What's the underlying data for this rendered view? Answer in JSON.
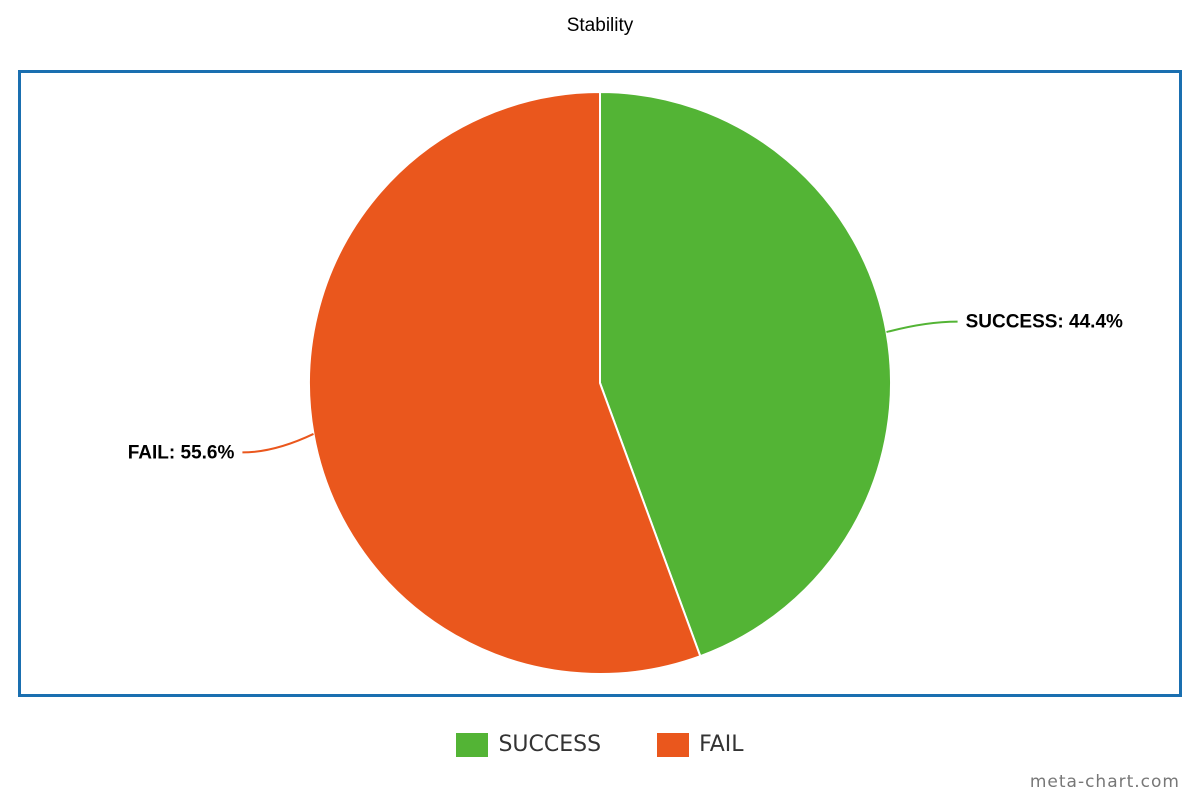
{
  "chart_data": {
    "type": "pie",
    "title": "Stability",
    "slices": [
      {
        "name": "SUCCESS",
        "value": 44.4,
        "color": "#53b435",
        "label": "SUCCESS: 44.4%"
      },
      {
        "name": "FAIL",
        "value": 55.6,
        "color": "#ea571d",
        "label": "FAIL: 55.6%"
      }
    ],
    "legend": {
      "placement": "bottom-center",
      "items": [
        "SUCCESS",
        "FAIL"
      ]
    },
    "frame_color": "#1a6fb0"
  },
  "watermark": "meta-chart.com"
}
